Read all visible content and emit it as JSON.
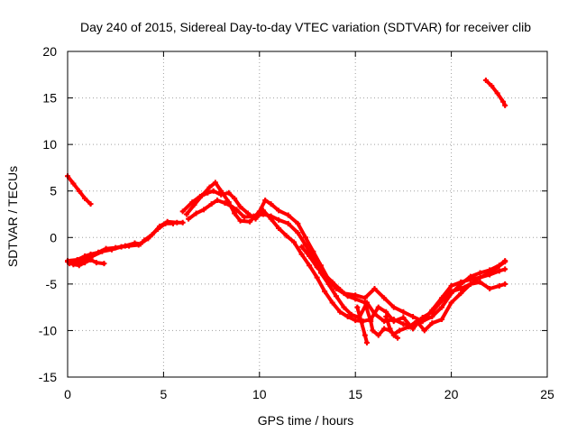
{
  "chart_data": {
    "type": "scatter",
    "title": "Day 240 of 2015, Sidereal Day-to-day VTEC variation (SDTVAR) for receiver clib",
    "xlabel": "GPS time / hours",
    "ylabel": "SDTVAR / TECUs",
    "xlim": [
      0,
      25
    ],
    "ylim": [
      -15,
      20
    ],
    "xticks": [
      "0",
      "5",
      "10",
      "15",
      "20",
      "25"
    ],
    "yticks": [
      "-15",
      "-10",
      "-5",
      "0",
      "5",
      "10",
      "15",
      "20"
    ],
    "grid": true,
    "marker_color": "#ff0000",
    "series": [
      {
        "values": [
          [
            0.0,
            6.6
          ],
          [
            0.3,
            5.8
          ],
          [
            0.6,
            5.0
          ],
          [
            0.9,
            4.2
          ],
          [
            1.2,
            3.6
          ]
        ]
      },
      {
        "values": [
          [
            0.0,
            -2.6
          ],
          [
            0.3,
            -2.9
          ],
          [
            0.6,
            -3.0
          ],
          [
            0.9,
            -2.7
          ],
          [
            1.2,
            -2.4
          ],
          [
            1.5,
            -2.7
          ],
          [
            1.9,
            -2.8
          ]
        ]
      },
      {
        "values": [
          [
            0.0,
            -2.5
          ],
          [
            0.5,
            -2.4
          ],
          [
            0.9,
            -2.0
          ],
          [
            1.2,
            -1.8
          ],
          [
            1.6,
            -1.6
          ],
          [
            2.0,
            -1.2
          ],
          [
            2.5,
            -1.1
          ],
          [
            3.0,
            -0.9
          ],
          [
            3.5,
            -0.6
          ],
          [
            3.8,
            -0.7
          ],
          [
            4.0,
            -0.3
          ],
          [
            4.4,
            0.3
          ],
          [
            4.8,
            1.2
          ],
          [
            5.2,
            1.7
          ],
          [
            5.7,
            1.6
          ],
          [
            6.0,
            1.6
          ]
        ]
      },
      {
        "values": [
          [
            0.1,
            -2.8
          ],
          [
            0.5,
            -2.7
          ],
          [
            0.9,
            -2.3
          ],
          [
            1.3,
            -2.0
          ],
          [
            1.8,
            -1.5
          ],
          [
            2.3,
            -1.3
          ],
          [
            2.8,
            -1.0
          ],
          [
            3.2,
            -0.9
          ],
          [
            3.7,
            -0.8
          ],
          [
            4.2,
            -0.1
          ],
          [
            4.7,
            0.9
          ],
          [
            5.1,
            1.5
          ],
          [
            5.5,
            1.5
          ]
        ]
      },
      {
        "values": [
          [
            6.2,
            2.5
          ],
          [
            6.6,
            3.5
          ],
          [
            7.0,
            4.5
          ],
          [
            7.4,
            5.4
          ],
          [
            7.7,
            5.9
          ],
          [
            8.0,
            5.0
          ],
          [
            8.4,
            3.8
          ],
          [
            8.7,
            2.6
          ],
          [
            9.0,
            1.8
          ],
          [
            9.5,
            1.7
          ],
          [
            10.0,
            2.8
          ],
          [
            10.3,
            4.0
          ],
          [
            10.6,
            3.6
          ],
          [
            11.0,
            2.9
          ],
          [
            11.5,
            2.4
          ],
          [
            12.0,
            1.5
          ],
          [
            12.4,
            0.0
          ],
          [
            12.8,
            -1.5
          ],
          [
            13.2,
            -3.0
          ],
          [
            13.6,
            -4.5
          ],
          [
            14.0,
            -5.5
          ],
          [
            14.4,
            -6.0
          ],
          [
            15.0,
            -6.2
          ],
          [
            15.5,
            -6.5
          ],
          [
            16.0,
            -5.5
          ],
          [
            16.5,
            -6.5
          ],
          [
            17.0,
            -7.5
          ],
          [
            17.5,
            -8.0
          ],
          [
            18.0,
            -8.5
          ],
          [
            18.5,
            -9.0
          ],
          [
            19.0,
            -8.5
          ],
          [
            19.5,
            -7.5
          ],
          [
            20.0,
            -6.0
          ],
          [
            20.5,
            -5.0
          ],
          [
            21.0,
            -4.2
          ],
          [
            21.5,
            -3.8
          ],
          [
            22.0,
            -3.5
          ],
          [
            22.5,
            -3.0
          ],
          [
            22.8,
            -2.5
          ]
        ]
      },
      {
        "values": [
          [
            6.3,
            2.0
          ],
          [
            6.7,
            2.6
          ],
          [
            7.1,
            3.0
          ],
          [
            7.5,
            3.6
          ],
          [
            7.8,
            4.0
          ],
          [
            8.2,
            3.7
          ],
          [
            8.5,
            3.4
          ],
          [
            8.8,
            3.0
          ],
          [
            9.2,
            2.2
          ],
          [
            9.7,
            2.3
          ],
          [
            10.2,
            2.5
          ],
          [
            10.6,
            2.3
          ],
          [
            11.0,
            1.9
          ],
          [
            11.5,
            1.5
          ],
          [
            12.0,
            0.5
          ],
          [
            12.4,
            -0.8
          ],
          [
            12.8,
            -2.2
          ],
          [
            13.2,
            -3.8
          ],
          [
            13.6,
            -5.0
          ],
          [
            14.0,
            -6.3
          ],
          [
            14.4,
            -7.5
          ],
          [
            14.8,
            -8.3
          ],
          [
            15.2,
            -8.6
          ],
          [
            15.6,
            -7.0
          ],
          [
            16.0,
            -8.2
          ],
          [
            16.5,
            -9.0
          ],
          [
            17.0,
            -8.8
          ],
          [
            17.5,
            -9.3
          ],
          [
            18.0,
            -9.5
          ],
          [
            18.5,
            -9.0
          ],
          [
            19.0,
            -7.8
          ],
          [
            19.5,
            -6.5
          ],
          [
            20.0,
            -5.2
          ],
          [
            20.5,
            -4.8
          ],
          [
            21.0,
            -4.5
          ],
          [
            21.5,
            -4.3
          ],
          [
            22.0,
            -4.0
          ],
          [
            22.5,
            -3.6
          ],
          [
            22.8,
            -3.4
          ]
        ]
      },
      {
        "values": [
          [
            6.0,
            2.8
          ],
          [
            6.5,
            3.8
          ],
          [
            6.9,
            4.4
          ],
          [
            7.3,
            4.8
          ],
          [
            7.6,
            5.0
          ],
          [
            8.0,
            4.6
          ],
          [
            8.4,
            4.8
          ],
          [
            8.7,
            4.2
          ],
          [
            9.0,
            3.3
          ],
          [
            9.4,
            2.6
          ],
          [
            9.8,
            2.0
          ],
          [
            10.2,
            2.9
          ],
          [
            10.6,
            2.0
          ],
          [
            11.0,
            1.0
          ],
          [
            11.4,
            0.2
          ],
          [
            11.8,
            -0.5
          ],
          [
            12.2,
            -1.8
          ],
          [
            12.6,
            -3.0
          ],
          [
            13.0,
            -4.3
          ],
          [
            13.4,
            -5.8
          ],
          [
            13.8,
            -7.0
          ],
          [
            14.2,
            -8.0
          ],
          [
            14.6,
            -8.5
          ],
          [
            15.0,
            -8.9
          ],
          [
            15.4,
            -9.0
          ],
          [
            15.8,
            -8.8
          ],
          [
            16.2,
            -7.5
          ],
          [
            16.6,
            -8.0
          ],
          [
            17.0,
            -9.0
          ],
          [
            17.5,
            -8.6
          ],
          [
            18.0,
            -9.8
          ],
          [
            18.5,
            -8.6
          ],
          [
            19.0,
            -8.0
          ],
          [
            19.5,
            -6.8
          ],
          [
            20.0,
            -5.8
          ],
          [
            20.5,
            -5.5
          ],
          [
            21.0,
            -5.0
          ],
          [
            21.5,
            -4.8
          ],
          [
            22.0,
            -5.5
          ],
          [
            22.5,
            -5.2
          ],
          [
            22.8,
            -5.0
          ]
        ]
      },
      {
        "values": [
          [
            12.2,
            -1.0
          ],
          [
            12.6,
            -2.0
          ],
          [
            13.0,
            -3.2
          ],
          [
            13.4,
            -4.0
          ],
          [
            13.8,
            -4.8
          ],
          [
            14.2,
            -5.6
          ],
          [
            14.6,
            -6.3
          ],
          [
            15.0,
            -6.6
          ],
          [
            15.5,
            -7.0
          ],
          [
            15.8,
            -9.0
          ],
          [
            15.9,
            -10.0
          ],
          [
            16.2,
            -10.5
          ],
          [
            16.5,
            -9.8
          ],
          [
            16.8,
            -10.0
          ],
          [
            17.0,
            -10.4
          ],
          [
            17.3,
            -10.0
          ],
          [
            17.8,
            -9.6
          ],
          [
            18.2,
            -9.0
          ],
          [
            18.6,
            -10.0
          ],
          [
            19.0,
            -9.2
          ],
          [
            19.5,
            -8.8
          ],
          [
            20.0,
            -7.0
          ],
          [
            20.5,
            -6.0
          ],
          [
            21.0,
            -5.0
          ],
          [
            21.5,
            -4.3
          ],
          [
            22.0,
            -3.8
          ],
          [
            22.4,
            -3.2
          ],
          [
            22.8,
            -2.6
          ]
        ]
      },
      {
        "values": [
          [
            15.1,
            -7.5
          ],
          [
            15.3,
            -9.0
          ],
          [
            15.5,
            -10.5
          ],
          [
            15.6,
            -11.3
          ]
        ]
      },
      {
        "values": [
          [
            16.6,
            -8.5
          ],
          [
            16.8,
            -9.8
          ],
          [
            17.0,
            -10.5
          ],
          [
            17.2,
            -10.8
          ]
        ]
      },
      {
        "values": [
          [
            21.8,
            16.9
          ],
          [
            22.1,
            16.3
          ],
          [
            22.4,
            15.5
          ],
          [
            22.7,
            14.6
          ],
          [
            22.8,
            14.2
          ]
        ]
      }
    ]
  }
}
